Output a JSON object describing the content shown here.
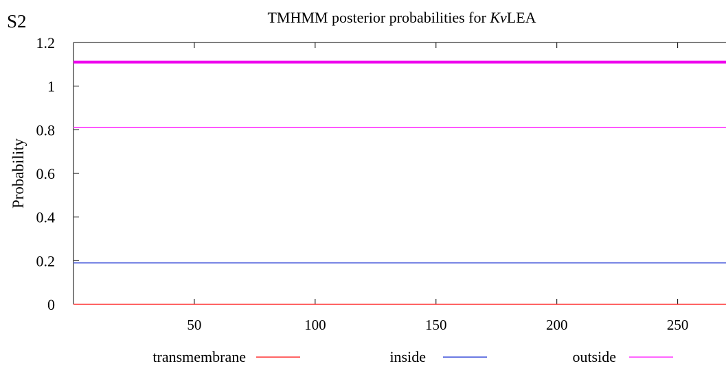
{
  "panel_label": "S2",
  "chart_data": {
    "type": "line",
    "title_prefix": "TMHMM posterior probabilities for ",
    "title_italic": "Kv",
    "title_suffix": "LEA",
    "xlabel": "",
    "ylabel": "Probability",
    "xlim": [
      0,
      270
    ],
    "ylim": [
      0,
      1.2
    ],
    "x_ticks": [
      50,
      100,
      150,
      200,
      250
    ],
    "y_ticks": [
      0,
      0.2,
      0.4,
      0.6,
      0.8,
      1,
      1.2
    ],
    "x_tick_labels": [
      "50",
      "100",
      "150",
      "200",
      "250"
    ],
    "y_tick_labels": [
      "0",
      "0.2",
      "0.4",
      "0.6",
      "0.8",
      "1",
      "1.2"
    ],
    "grid": false,
    "legend_position": "bottom",
    "series": [
      {
        "name": "transmembrane",
        "color": "#ff3030",
        "x": [
          0,
          270
        ],
        "y": [
          0,
          0
        ]
      },
      {
        "name": "inside",
        "color": "#3a4fd8",
        "x": [
          0,
          270
        ],
        "y": [
          0.19,
          0.19
        ]
      },
      {
        "name": "outside",
        "color": "#ff33ff",
        "x": [
          0,
          270
        ],
        "y": [
          0.81,
          0.81
        ]
      }
    ],
    "extra_lines": [
      {
        "color": "#ee00ee",
        "y": 1.11
      }
    ]
  }
}
